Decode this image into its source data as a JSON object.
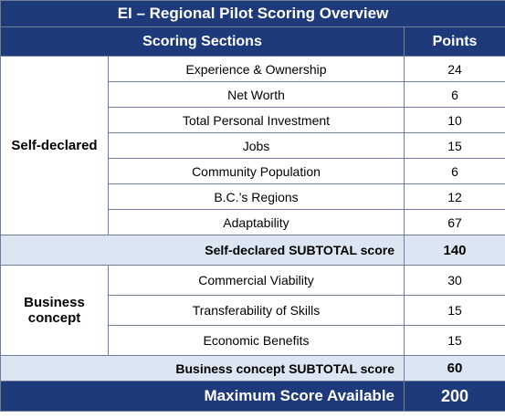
{
  "title": "EI – Regional Pilot Scoring Overview",
  "header": {
    "sections_label": "Scoring Sections",
    "points_label": "Points"
  },
  "groups": [
    {
      "label": "Self-declared",
      "rows": [
        {
          "section": "Experience & Ownership",
          "points": "24"
        },
        {
          "section": "Net Worth",
          "points": "6"
        },
        {
          "section": "Total Personal Investment",
          "points": "10"
        },
        {
          "section": "Jobs",
          "points": "15"
        },
        {
          "section": "Community Population",
          "points": "6"
        },
        {
          "section": "B.C.’s Regions",
          "points": "12"
        },
        {
          "section": "Adaptability",
          "points": "67"
        }
      ],
      "subtotal_label": "Self-declared SUBTOTAL score",
      "subtotal_points": "140"
    },
    {
      "label": "Business concept",
      "rows": [
        {
          "section": "Commercial Viability",
          "points": "30"
        },
        {
          "section": "Transferability of Skills",
          "points": "15"
        },
        {
          "section": "Economic Benefits",
          "points": "15"
        }
      ],
      "subtotal_label": "Business concept SUBTOTAL score",
      "subtotal_points": "60"
    }
  ],
  "max_label": "Maximum Score Available",
  "max_points": "200",
  "colors": {
    "header_bg": "#1f3a7a",
    "subtotal_bg": "#dce6f2",
    "border": "#6f7d99"
  }
}
